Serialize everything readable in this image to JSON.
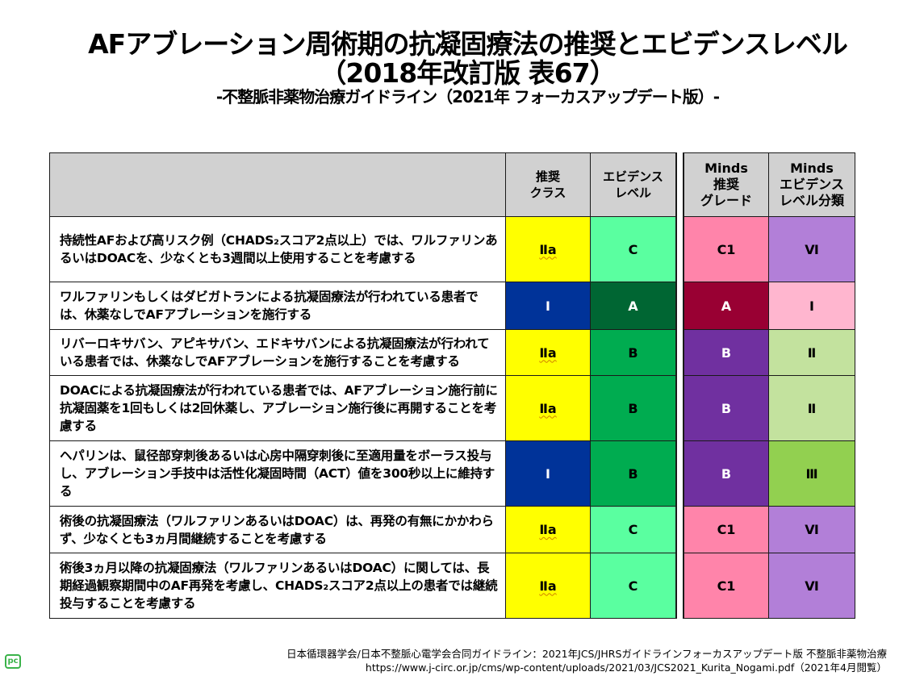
{
  "header": {
    "title_line1": "AFアブレーション周術期の抗凝固療法の推奨とエビデンスレベル",
    "title_line2": "（2018年改訂版 表67）",
    "subtitle": "-不整脈非薬物治療ガイドライン（2021年 フォーカスアップデート版）-"
  },
  "table": {
    "columns": [
      {
        "label": ""
      },
      {
        "label": "推奨\nクラス"
      },
      {
        "label": "エビデンス\nレベル"
      },
      {
        "label": "Minds\n推奨\nグレード"
      },
      {
        "label": "Minds\nエビデンス\nレベル分類"
      }
    ],
    "rows": [
      {
        "text": "持続性AFおよび高リスク例（CHADS₂スコア2点以上）では、ワルファリンあるいはDOACを、少なくとも3週間以上使用することを考慮する",
        "class": "Ⅱa",
        "evidence": "C",
        "minds_grade": "C1",
        "minds_level": "Ⅵ",
        "colors": {
          "class": "#ffff00",
          "evidence": "#5affa0",
          "minds_grade": "#ff84aa",
          "minds_level": "#b27fd8"
        },
        "text_colors": {
          "class": "#000000",
          "evidence": "#000000",
          "minds_grade": "#000000",
          "minds_level": "#000000"
        }
      },
      {
        "text": "ワルファリンもしくはダビガトランによる抗凝固療法が行われている患者では、休薬なしでAFアブレーションを施行する",
        "class": "Ⅰ",
        "evidence": "A",
        "minds_grade": "A",
        "minds_level": "Ⅰ",
        "colors": {
          "class": "#003399",
          "evidence": "#006633",
          "minds_grade": "#990033",
          "minds_level": "#ffb6cf"
        },
        "text_colors": {
          "class": "#ffffff",
          "evidence": "#ffffff",
          "minds_grade": "#ffffff",
          "minds_level": "#000000"
        }
      },
      {
        "text": "リバーロキサバン、アピキサバン、エドキサバンによる抗凝固療法が行われている患者では、休薬なしでAFアブレーションを施行することを考慮する",
        "class": "Ⅱa",
        "evidence": "B",
        "minds_grade": "B",
        "minds_level": "Ⅱ",
        "colors": {
          "class": "#ffff00",
          "evidence": "#00ac50",
          "minds_grade": "#7030a0",
          "minds_level": "#c3e29e"
        },
        "text_colors": {
          "class": "#000000",
          "evidence": "#000000",
          "minds_grade": "#ffffff",
          "minds_level": "#000000"
        }
      },
      {
        "text": "DOACによる抗凝固療法が行われている患者では、AFアブレーション施行前に抗凝固薬を1回もしくは2回休薬し、アブレーション施行後に再開することを考慮する",
        "class": "Ⅱa",
        "evidence": "B",
        "minds_grade": "B",
        "minds_level": "Ⅱ",
        "colors": {
          "class": "#ffff00",
          "evidence": "#00ac50",
          "minds_grade": "#7030a0",
          "minds_level": "#c3e29e"
        },
        "text_colors": {
          "class": "#000000",
          "evidence": "#000000",
          "minds_grade": "#ffffff",
          "minds_level": "#000000"
        }
      },
      {
        "text": "ヘパリンは、鼠径部穿刺後あるいは心房中隔穿刺後に至適用量をボーラス投与し、アブレーション手技中は活性化凝固時間（ACT）値を300秒以上に維持する",
        "class": "Ⅰ",
        "evidence": "B",
        "minds_grade": "B",
        "minds_level": "Ⅲ",
        "colors": {
          "class": "#003399",
          "evidence": "#00ac50",
          "minds_grade": "#7030a0",
          "minds_level": "#92d050"
        },
        "text_colors": {
          "class": "#ffffff",
          "evidence": "#000000",
          "minds_grade": "#ffffff",
          "minds_level": "#000000"
        }
      },
      {
        "text": "術後の抗凝固療法（ワルファリンあるいはDOAC）は、再発の有無にかかわらず、少なくとも3ヵ月間継続することを考慮する",
        "class": "Ⅱa",
        "evidence": "C",
        "minds_grade": "C1",
        "minds_level": "Ⅵ",
        "colors": {
          "class": "#ffff00",
          "evidence": "#5affa0",
          "minds_grade": "#ff84aa",
          "minds_level": "#b27fd8"
        },
        "text_colors": {
          "class": "#000000",
          "evidence": "#000000",
          "minds_grade": "#000000",
          "minds_level": "#000000"
        }
      },
      {
        "text": "術後3ヵ月以降の抗凝固療法（ワルファリンあるいはDOAC）に関しては、長期経過観察期間中のAF再発を考慮し、CHADS₂スコア2点以上の患者では継続投与することを考慮する",
        "class": "Ⅱa",
        "evidence": "C",
        "minds_grade": "C1",
        "minds_level": "Ⅵ",
        "colors": {
          "class": "#ffff00",
          "evidence": "#5affa0",
          "minds_grade": "#ff84aa",
          "minds_level": "#b27fd8"
        },
        "text_colors": {
          "class": "#000000",
          "evidence": "#000000",
          "minds_grade": "#000000",
          "minds_level": "#000000"
        }
      }
    ],
    "header_color": "#d1d1d1"
  },
  "footer": {
    "line1": "日本循環器学会/日本不整脈心電学会合同ガイドライン：2021年JCS/JHRSガイドラインフォーカスアップデート版 不整脈非薬物治療",
    "line2": "https://www.j-circ.or.jp/cms/wp-content/uploads/2021/03/JCS2021_Kurita_Nogami.pdf（2021年4月閲覧）",
    "logo_text": "pc",
    "logo_color": "#3bb34a"
  }
}
